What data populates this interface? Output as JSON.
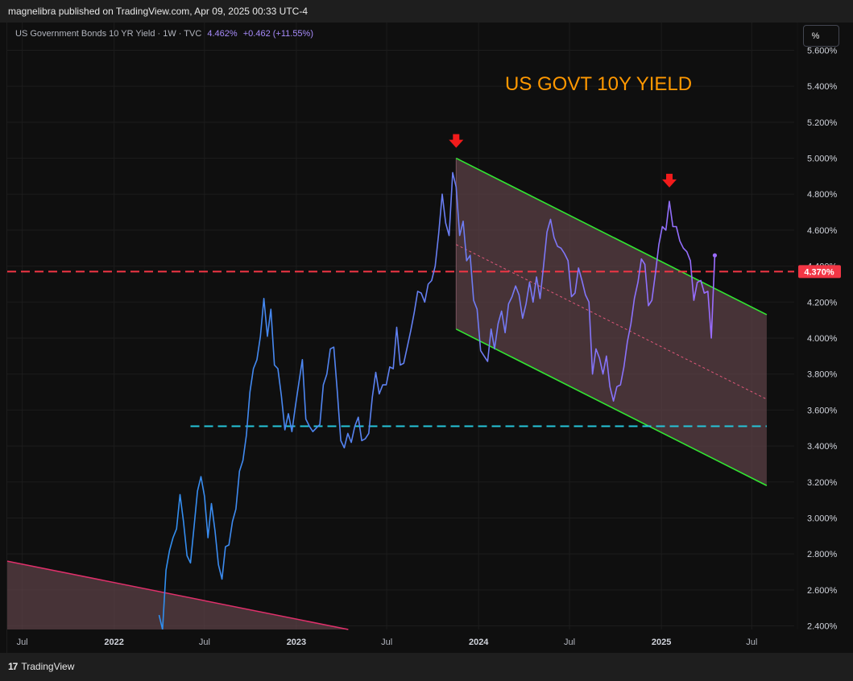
{
  "header": {
    "publisher_text": "magnelibra published on TradingView.com, Apr 09, 2025 00:33 UTC-4"
  },
  "legend": {
    "symbol_text": "US Government Bonds 10 YR Yield · 1W · TVC",
    "last_value": "4.462%",
    "change": "+0.462 (+11.55%)"
  },
  "scale_button": {
    "label": "%"
  },
  "footer": {
    "logo_mark": "17",
    "logo_text": "TradingView"
  },
  "colors": {
    "line_start": "#2f8ff0",
    "line_end": "#9a6cff",
    "channel_green": "#32e632",
    "channel_fill": "#5b4046",
    "midline": "#e0577a",
    "resistance": "#f23645",
    "support": "#26c6da",
    "old_channel": "#e0306b",
    "annotation": "#ff9800",
    "arrow": "#f21b1b",
    "price_tag": "#f23645"
  },
  "chart_data": {
    "type": "line",
    "title": "US GOVT 10Y YIELD",
    "x_ticks": [
      {
        "label": "Jul",
        "date": "2021-07-01",
        "year": false
      },
      {
        "label": "2022",
        "date": "2022-01-01",
        "year": true
      },
      {
        "label": "Jul",
        "date": "2022-07-01",
        "year": false
      },
      {
        "label": "2023",
        "date": "2023-01-01",
        "year": true
      },
      {
        "label": "Jul",
        "date": "2023-07-01",
        "year": false
      },
      {
        "label": "2024",
        "date": "2024-01-01",
        "year": true
      },
      {
        "label": "Jul",
        "date": "2024-07-01",
        "year": false
      },
      {
        "label": "2025",
        "date": "2025-01-01",
        "year": true
      },
      {
        "label": "Jul",
        "date": "2025-07-01",
        "year": false
      }
    ],
    "xlim": [
      "2021-06-01",
      "2025-09-24"
    ],
    "y_ticks": [
      "2.400%",
      "2.600%",
      "2.800%",
      "3.000%",
      "3.200%",
      "3.400%",
      "3.600%",
      "3.800%",
      "4.000%",
      "4.200%",
      "4.400%",
      "4.600%",
      "4.800%",
      "5.000%",
      "5.200%",
      "5.400%",
      "5.600%"
    ],
    "ylim": [
      2.38,
      5.62
    ],
    "last_price_label": "4.370%",
    "series": [
      {
        "values": [
          [
            "2022-04-01",
            2.46
          ],
          [
            "2022-04-08",
            2.38
          ],
          [
            "2022-04-15",
            2.71
          ],
          [
            "2022-04-22",
            2.82
          ],
          [
            "2022-04-29",
            2.89
          ],
          [
            "2022-05-06",
            2.94
          ],
          [
            "2022-05-13",
            3.13
          ],
          [
            "2022-05-20",
            2.98
          ],
          [
            "2022-05-27",
            2.79
          ],
          [
            "2022-06-03",
            2.75
          ],
          [
            "2022-06-10",
            2.95
          ],
          [
            "2022-06-17",
            3.15
          ],
          [
            "2022-06-24",
            3.23
          ],
          [
            "2022-07-01",
            3.12
          ],
          [
            "2022-07-08",
            2.89
          ],
          [
            "2022-07-15",
            3.08
          ],
          [
            "2022-07-22",
            2.93
          ],
          [
            "2022-07-29",
            2.74
          ],
          [
            "2022-08-05",
            2.66
          ],
          [
            "2022-08-12",
            2.84
          ],
          [
            "2022-08-19",
            2.85
          ],
          [
            "2022-08-26",
            2.98
          ],
          [
            "2022-09-02",
            3.05
          ],
          [
            "2022-09-09",
            3.26
          ],
          [
            "2022-09-16",
            3.32
          ],
          [
            "2022-09-23",
            3.46
          ],
          [
            "2022-09-30",
            3.7
          ],
          [
            "2022-10-07",
            3.83
          ],
          [
            "2022-10-14",
            3.88
          ],
          [
            "2022-10-21",
            4.01
          ],
          [
            "2022-10-28",
            4.22
          ],
          [
            "2022-11-04",
            4.01
          ],
          [
            "2022-11-11",
            4.16
          ],
          [
            "2022-11-18",
            3.85
          ],
          [
            "2022-11-25",
            3.83
          ],
          [
            "2022-12-02",
            3.68
          ],
          [
            "2022-12-09",
            3.49
          ],
          [
            "2022-12-16",
            3.58
          ],
          [
            "2022-12-23",
            3.48
          ],
          [
            "2022-12-30",
            3.62
          ],
          [
            "2023-01-06",
            3.75
          ],
          [
            "2023-01-13",
            3.88
          ],
          [
            "2023-01-20",
            3.55
          ],
          [
            "2023-01-27",
            3.51
          ],
          [
            "2023-02-03",
            3.48
          ],
          [
            "2023-02-10",
            3.5
          ],
          [
            "2023-02-17",
            3.52
          ],
          [
            "2023-02-24",
            3.74
          ],
          [
            "2023-03-03",
            3.8
          ],
          [
            "2023-03-10",
            3.94
          ],
          [
            "2023-03-17",
            3.95
          ],
          [
            "2023-03-24",
            3.7
          ],
          [
            "2023-03-31",
            3.43
          ],
          [
            "2023-04-07",
            3.39
          ],
          [
            "2023-04-14",
            3.47
          ],
          [
            "2023-04-21",
            3.42
          ],
          [
            "2023-04-28",
            3.51
          ],
          [
            "2023-05-05",
            3.56
          ],
          [
            "2023-05-12",
            3.43
          ],
          [
            "2023-05-19",
            3.44
          ],
          [
            "2023-05-26",
            3.47
          ],
          [
            "2023-06-02",
            3.67
          ],
          [
            "2023-06-09",
            3.81
          ],
          [
            "2023-06-16",
            3.69
          ],
          [
            "2023-06-23",
            3.74
          ],
          [
            "2023-06-30",
            3.74
          ],
          [
            "2023-07-07",
            3.84
          ],
          [
            "2023-07-14",
            3.83
          ],
          [
            "2023-07-21",
            4.06
          ],
          [
            "2023-07-28",
            3.85
          ],
          [
            "2023-08-04",
            3.86
          ],
          [
            "2023-08-11",
            3.95
          ],
          [
            "2023-08-18",
            4.04
          ],
          [
            "2023-08-25",
            4.14
          ],
          [
            "2023-09-01",
            4.26
          ],
          [
            "2023-09-08",
            4.25
          ],
          [
            "2023-09-15",
            4.2
          ],
          [
            "2023-09-22",
            4.3
          ],
          [
            "2023-09-29",
            4.32
          ],
          [
            "2023-10-06",
            4.4
          ],
          [
            "2023-10-13",
            4.58
          ],
          [
            "2023-10-20",
            4.8
          ],
          [
            "2023-10-27",
            4.64
          ],
          [
            "2023-11-03",
            4.57
          ],
          [
            "2023-11-10",
            4.92
          ],
          [
            "2023-11-17",
            4.84
          ],
          [
            "2023-11-24",
            4.57
          ],
          [
            "2023-12-01",
            4.65
          ],
          [
            "2023-12-08",
            4.43
          ],
          [
            "2023-12-15",
            4.46
          ],
          [
            "2023-12-22",
            4.21
          ],
          [
            "2023-12-29",
            4.16
          ],
          [
            "2024-01-05",
            3.93
          ],
          [
            "2024-01-12",
            3.9
          ],
          [
            "2024-01-19",
            3.87
          ],
          [
            "2024-01-26",
            4.05
          ],
          [
            "2024-02-02",
            3.94
          ],
          [
            "2024-02-09",
            4.08
          ],
          [
            "2024-02-16",
            4.15
          ],
          [
            "2024-02-23",
            4.03
          ],
          [
            "2024-03-01",
            4.19
          ],
          [
            "2024-03-08",
            4.23
          ],
          [
            "2024-03-15",
            4.29
          ],
          [
            "2024-03-22",
            4.24
          ],
          [
            "2024-03-29",
            4.11
          ],
          [
            "2024-04-05",
            4.19
          ],
          [
            "2024-04-12",
            4.31
          ],
          [
            "2024-04-19",
            4.2
          ],
          [
            "2024-04-26",
            4.34
          ],
          [
            "2024-05-03",
            4.22
          ],
          [
            "2024-05-10",
            4.4
          ],
          [
            "2024-05-17",
            4.59
          ],
          [
            "2024-05-24",
            4.66
          ],
          [
            "2024-05-31",
            4.56
          ],
          [
            "2024-06-07",
            4.51
          ],
          [
            "2024-06-14",
            4.5
          ],
          [
            "2024-06-21",
            4.47
          ],
          [
            "2024-06-28",
            4.43
          ],
          [
            "2024-07-05",
            4.23
          ],
          [
            "2024-07-12",
            4.25
          ],
          [
            "2024-07-19",
            4.39
          ],
          [
            "2024-07-26",
            4.32
          ],
          [
            "2024-08-02",
            4.24
          ],
          [
            "2024-08-09",
            4.2
          ],
          [
            "2024-08-16",
            3.8
          ],
          [
            "2024-08-23",
            3.94
          ],
          [
            "2024-08-30",
            3.89
          ],
          [
            "2024-09-06",
            3.8
          ],
          [
            "2024-09-13",
            3.9
          ],
          [
            "2024-09-20",
            3.73
          ],
          [
            "2024-09-27",
            3.65
          ],
          [
            "2024-10-04",
            3.73
          ],
          [
            "2024-10-11",
            3.74
          ],
          [
            "2024-10-18",
            3.84
          ],
          [
            "2024-10-25",
            3.98
          ],
          [
            "2024-11-01",
            4.08
          ],
          [
            "2024-11-08",
            4.22
          ],
          [
            "2024-11-15",
            4.31
          ],
          [
            "2024-11-22",
            4.44
          ],
          [
            "2024-11-29",
            4.41
          ],
          [
            "2024-12-06",
            4.18
          ],
          [
            "2024-12-13",
            4.21
          ],
          [
            "2024-12-20",
            4.36
          ],
          [
            "2024-12-27",
            4.52
          ],
          [
            "2025-01-03",
            4.62
          ],
          [
            "2025-01-10",
            4.6
          ],
          [
            "2025-01-17",
            4.76
          ],
          [
            "2025-01-24",
            4.62
          ],
          [
            "2025-01-31",
            4.62
          ],
          [
            "2025-02-07",
            4.54
          ],
          [
            "2025-02-14",
            4.5
          ],
          [
            "2025-02-21",
            4.48
          ],
          [
            "2025-02-28",
            4.43
          ],
          [
            "2025-03-07",
            4.21
          ],
          [
            "2025-03-14",
            4.31
          ],
          [
            "2025-03-21",
            4.32
          ],
          [
            "2025-03-28",
            4.25
          ],
          [
            "2025-04-04",
            4.26
          ],
          [
            "2025-04-11",
            4.0
          ],
          [
            "2025-04-18",
            4.46
          ]
        ]
      }
    ],
    "annotations": {
      "resistance_level": 4.37,
      "support_level": 3.51,
      "support_start": "2022-06-03",
      "support_end": "2025-07-31",
      "channel_upper": [
        [
          "2023-11-17",
          5.0
        ],
        [
          "2025-07-31",
          4.13
        ]
      ],
      "channel_lower": [
        [
          "2023-11-17",
          4.05
        ],
        [
          "2025-07-31",
          3.18
        ]
      ],
      "channel_mid": [
        [
          "2023-11-17",
          4.52
        ],
        [
          "2025-07-31",
          3.66
        ]
      ],
      "old_channel_line": [
        [
          "2021-06-01",
          2.76
        ],
        [
          "2023-04-15",
          2.38
        ]
      ],
      "down_arrows": [
        [
          "2023-11-17",
          5.08
        ],
        [
          "2025-01-17",
          4.86
        ]
      ]
    }
  }
}
